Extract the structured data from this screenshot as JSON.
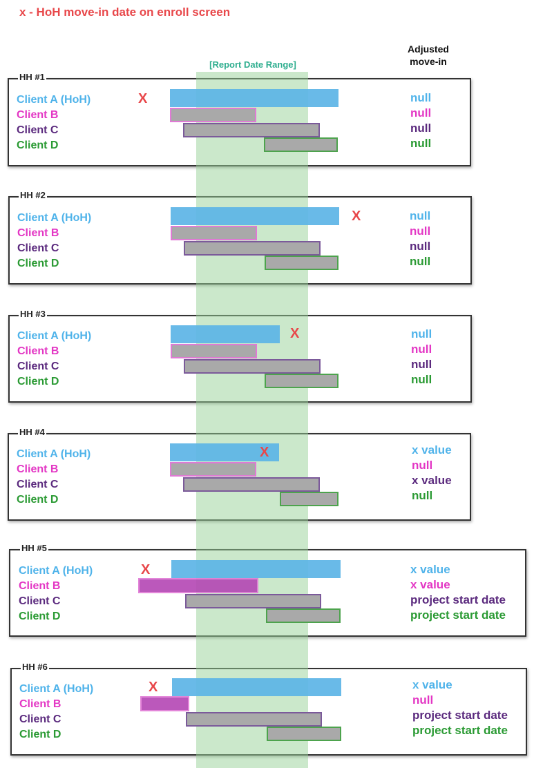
{
  "legend": {
    "title": "x - HoH move-in date on enroll screen"
  },
  "header": {
    "adjusted_line1": "Adjusted",
    "adjusted_line2": "move-in"
  },
  "range": {
    "label": "[Report Date Range]"
  },
  "client_labels": {
    "a": "Client A (HoH)",
    "b": "Client B",
    "c": "Client C",
    "d": "Client D"
  },
  "marker": "X",
  "households": [
    {
      "label": "HH #1",
      "values": [
        "null",
        "null",
        "null",
        "null"
      ]
    },
    {
      "label": "HH #2",
      "values": [
        "null",
        "null",
        "null",
        "null"
      ]
    },
    {
      "label": "HH #3",
      "values": [
        "null",
        "null",
        "null",
        "null"
      ]
    },
    {
      "label": "HH #4",
      "values": [
        "x value",
        "null",
        "x value",
        "null"
      ]
    },
    {
      "label": "HH #5",
      "values": [
        "x value",
        "x value",
        "project start date",
        "project start date"
      ]
    },
    {
      "label": "HH #6",
      "values": [
        "x value",
        "null",
        "project start date",
        "project start date"
      ]
    }
  ],
  "colors": {
    "client_a": "#4fb3ea",
    "client_b": "#e336c4",
    "client_c": "#5b2a7e",
    "client_d": "#2a9a33",
    "marker": "#e8474a",
    "range": "#98d298"
  }
}
